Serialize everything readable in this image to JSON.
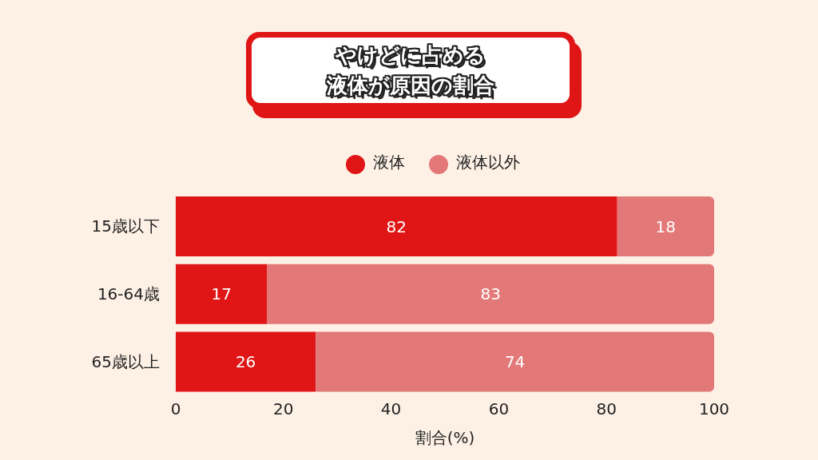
{
  "chart_data": {
    "type": "bar",
    "orientation": "horizontal",
    "stacked": true,
    "title": "やけどに占める液体が原因の割合",
    "xlabel": "割合(%)",
    "categories": [
      "15歳以下",
      "16-64歳",
      "65歳以上"
    ],
    "series": [
      {
        "name": "液体",
        "color": "#e01515",
        "values": [
          82,
          17,
          26
        ]
      },
      {
        "name": "液体以外",
        "color": "#e37878",
        "values": [
          18,
          83,
          74
        ]
      }
    ],
    "xlim": [
      0,
      100
    ],
    "xticks": [
      0,
      20,
      40,
      60,
      80,
      100
    ],
    "data_labels": true,
    "legend": "top"
  }
}
